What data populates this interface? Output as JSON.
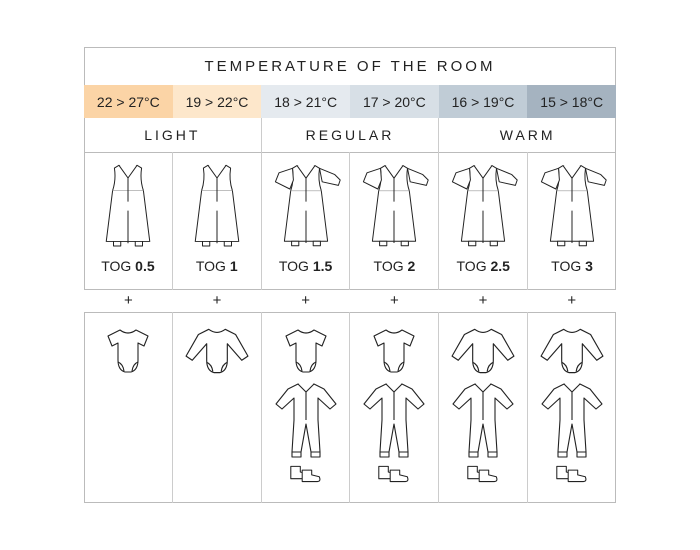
{
  "title": "TEMPERATURE OF THE ROOM",
  "temperatures": [
    {
      "label": "22 > 27°C",
      "color": "#fbd4a6"
    },
    {
      "label": "19 > 22°C",
      "color": "#fde7cb"
    },
    {
      "label": "18 > 21°C",
      "color": "#e5eaef"
    },
    {
      "label": "17 > 20°C",
      "color": "#d7dfe6"
    },
    {
      "label": "16 > 19°C",
      "color": "#c0ccd6"
    },
    {
      "label": "15 > 18°C",
      "color": "#a5b3c0"
    }
  ],
  "categories": [
    "LIGHT",
    "REGULAR",
    "WARM"
  ],
  "sleeping_bags": [
    {
      "prefix": "TOG",
      "value": "0.5",
      "icon": "sleeveless-sleeping-bag-icon"
    },
    {
      "prefix": "TOG",
      "value": "1",
      "icon": "sleeveless-sleeping-bag-icon"
    },
    {
      "prefix": "TOG",
      "value": "1.5",
      "icon": "sleeved-sleeping-bag-icon"
    },
    {
      "prefix": "TOG",
      "value": "2",
      "icon": "sleeved-sleeping-bag-icon"
    },
    {
      "prefix": "TOG",
      "value": "2.5",
      "icon": "sleeved-sleeping-bag-icon"
    },
    {
      "prefix": "TOG",
      "value": "3",
      "icon": "sleeved-sleeping-bag-icon"
    }
  ],
  "plus": "+",
  "clothing": [
    [
      "short-sleeve-bodysuit-icon"
    ],
    [
      "long-sleeve-bodysuit-icon"
    ],
    [
      "short-sleeve-bodysuit-icon",
      "pyjama-icon",
      "booties-icon"
    ],
    [
      "short-sleeve-bodysuit-icon",
      "pyjama-icon",
      "booties-icon"
    ],
    [
      "long-sleeve-bodysuit-icon",
      "pyjama-icon",
      "booties-icon"
    ],
    [
      "long-sleeve-bodysuit-icon",
      "pyjama-icon",
      "booties-icon"
    ]
  ]
}
